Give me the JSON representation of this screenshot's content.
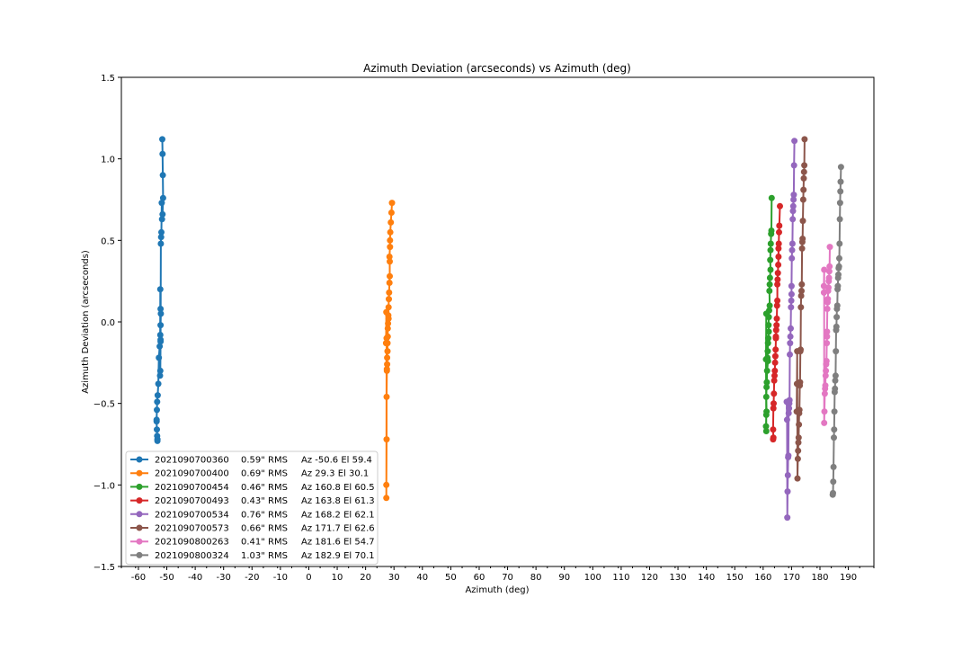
{
  "chart_data": {
    "type": "line",
    "title": "Azimuth Deviation (arcseconds) vs Azimuth (deg)",
    "xlabel": "Azimuth (deg)",
    "ylabel": "Azimuth Deviation (arcseconds)",
    "xlim": [
      -66,
      199
    ],
    "ylim": [
      -1.5,
      1.5
    ],
    "xticks": [
      -60,
      -50,
      -40,
      -30,
      -20,
      -10,
      0,
      10,
      20,
      30,
      40,
      50,
      60,
      70,
      80,
      90,
      100,
      110,
      120,
      130,
      140,
      150,
      160,
      170,
      180,
      190
    ],
    "yticks": [
      1.5,
      1.0,
      0.5,
      0.0,
      -0.5,
      -1.0,
      -1.5
    ],
    "ytick_labels": [
      "1.5",
      "1.0",
      "0.5",
      "0.0",
      "−0.5",
      "−1.0",
      "−1.5"
    ],
    "legend_position": "lower-left",
    "grid": false,
    "series": [
      {
        "name": "2021090700360",
        "rms": "0.59\" RMS",
        "pos": "Az -50.6 El 59.4",
        "color": "#1f77b4",
        "x": [
          -51.6,
          -51.5,
          -51.4,
          -51.3,
          -51.5,
          -51.7,
          -51.8,
          -51.9,
          -52.0,
          -52.1,
          -52.2,
          -52.2,
          -52.3,
          -52.4,
          -52.3,
          -52.2,
          -52.1,
          -52.2,
          -52.3,
          -52.5,
          -52.8,
          -53.0,
          -53.2,
          -53.4,
          -53.5,
          -53.6,
          -53.6,
          -53.5,
          -53.4,
          -53.3,
          -53.3
        ],
        "y": [
          1.12,
          1.03,
          0.9,
          0.76,
          0.66,
          0.63,
          0.73,
          0.55,
          0.52,
          0.48,
          -0.11,
          -0.12,
          -0.3,
          -0.33,
          0.2,
          0.08,
          0.05,
          -0.02,
          -0.08,
          -0.15,
          -0.22,
          -0.38,
          -0.45,
          -0.49,
          -0.54,
          -0.6,
          -0.61,
          -0.66,
          -0.7,
          -0.72,
          -0.73
        ]
      },
      {
        "name": "2021090700400",
        "rms": "0.69\" RMS",
        "pos": "Az 29.3 El 30.1",
        "color": "#ff7f0e",
        "x": [
          29.3,
          29.1,
          28.9,
          28.7,
          28.6,
          28.6,
          28.4,
          28.5,
          28.5,
          28.4,
          28.3,
          28.2,
          28.1,
          28.0,
          28.1,
          27.9,
          27.8,
          27.8,
          27.7,
          27.7,
          27.6,
          27.6,
          27.5,
          27.5,
          27.4,
          27.4,
          27.3,
          27.3,
          27.4,
          27.2,
          27.3
        ],
        "y": [
          0.73,
          0.67,
          0.61,
          0.55,
          0.5,
          0.46,
          0.4,
          0.37,
          0.28,
          0.24,
          0.18,
          0.14,
          0.09,
          0.04,
          0.02,
          -0.01,
          -0.04,
          -0.09,
          -0.13,
          -0.18,
          -0.22,
          -0.26,
          -0.29,
          -0.3,
          -0.46,
          -0.72,
          -1.0,
          -1.08,
          -0.1,
          -0.13,
          0.06
        ]
      },
      {
        "name": "2021090700454",
        "rms": "0.46\" RMS",
        "pos": "Az 160.8 El 60.5",
        "color": "#2ca02c",
        "x": [
          163.0,
          162.9,
          162.8,
          162.7,
          162.6,
          162.5,
          162.6,
          162.4,
          162.3,
          162.2,
          162.3,
          162.1,
          162.0,
          161.9,
          162.0,
          161.8,
          161.7,
          161.6,
          161.5,
          161.7,
          161.4,
          161.3,
          161.2,
          161.1,
          161.2,
          161.1,
          161.0,
          161.1,
          161.0,
          161.1
        ],
        "y": [
          0.76,
          0.56,
          0.54,
          0.48,
          0.44,
          0.38,
          0.32,
          0.27,
          0.23,
          0.19,
          0.1,
          0.07,
          0.03,
          -0.02,
          -0.06,
          -0.1,
          -0.13,
          -0.18,
          -0.22,
          -0.24,
          -0.3,
          -0.37,
          -0.4,
          -0.46,
          -0.55,
          -0.57,
          -0.64,
          -0.67,
          -0.23,
          0.05
        ]
      },
      {
        "name": "2021090700493",
        "rms": "0.43\" RMS",
        "pos": "Az 163.8 El 61.3",
        "color": "#d62728",
        "x": [
          165.9,
          165.7,
          165.6,
          165.5,
          165.4,
          165.4,
          165.3,
          165.2,
          165.1,
          165.0,
          165.0,
          164.9,
          164.8,
          164.7,
          164.6,
          164.5,
          164.5,
          164.4,
          164.3,
          164.2,
          164.1,
          164.0,
          163.9,
          163.8,
          163.7,
          163.6,
          163.5,
          163.6,
          163.5
        ],
        "y": [
          0.71,
          0.59,
          0.55,
          0.48,
          0.45,
          0.4,
          0.35,
          0.3,
          0.26,
          0.23,
          0.13,
          0.1,
          0.02,
          -0.02,
          -0.05,
          -0.09,
          -0.1,
          -0.17,
          -0.21,
          -0.25,
          -0.3,
          -0.33,
          -0.36,
          -0.44,
          -0.5,
          -0.53,
          -0.66,
          -0.71,
          -0.72
        ]
      },
      {
        "name": "2021090700534",
        "rms": "0.76\" RMS",
        "pos": "Az 168.2 El 62.1",
        "color": "#9467bd",
        "x": [
          171.0,
          170.9,
          170.8,
          170.7,
          170.6,
          170.5,
          170.4,
          170.3,
          170.2,
          170.1,
          170.0,
          170.0,
          169.9,
          169.8,
          169.7,
          169.6,
          169.5,
          169.4,
          169.3,
          169.2,
          169.1,
          169.0,
          168.9,
          168.8,
          168.7,
          168.6,
          168.5,
          168.4,
          168.3
        ],
        "y": [
          1.11,
          0.96,
          0.78,
          0.75,
          0.71,
          0.68,
          0.63,
          0.48,
          0.44,
          0.39,
          0.22,
          0.17,
          0.13,
          0.09,
          -0.04,
          -0.09,
          -0.13,
          -0.2,
          -0.48,
          -0.5,
          -0.53,
          -0.56,
          -0.82,
          -0.83,
          -0.94,
          -1.04,
          -1.2,
          -0.6,
          -0.49
        ]
      },
      {
        "name": "2021090700573",
        "rms": "0.66\" RMS",
        "pos": "Az 171.7 El 62.6",
        "color": "#8c564b",
        "x": [
          174.6,
          174.5,
          174.4,
          174.3,
          174.2,
          174.1,
          174.0,
          173.9,
          173.8,
          173.7,
          173.6,
          173.5,
          173.4,
          173.3,
          173.2,
          173.1,
          173.0,
          172.9,
          172.8,
          172.7,
          172.6,
          172.5,
          172.4,
          172.3,
          172.2,
          172.1,
          172.0,
          171.9,
          171.8
        ],
        "y": [
          1.12,
          0.96,
          0.92,
          0.88,
          0.81,
          0.75,
          0.62,
          0.51,
          0.49,
          0.45,
          0.23,
          0.19,
          0.16,
          0.09,
          -0.17,
          -0.18,
          -0.37,
          -0.39,
          -0.54,
          -0.56,
          -0.63,
          -0.71,
          -0.74,
          -0.79,
          -0.84,
          -0.96,
          -0.18,
          -0.38,
          -0.55
        ]
      },
      {
        "name": "2021090800263",
        "rms": "0.41\" RMS",
        "pos": "Az 181.6 El 54.7",
        "color": "#e377c2",
        "x": [
          183.5,
          183.4,
          183.3,
          183.2,
          183.1,
          183.0,
          182.9,
          182.8,
          182.7,
          182.6,
          182.5,
          182.5,
          182.4,
          182.3,
          182.2,
          182.1,
          182.0,
          181.9,
          181.8,
          181.7,
          181.6,
          181.5,
          181.5,
          181.4,
          181.4
        ],
        "y": [
          0.46,
          0.34,
          0.31,
          0.27,
          0.25,
          0.21,
          0.19,
          0.14,
          0.12,
          0.08,
          -0.06,
          -0.09,
          -0.13,
          -0.24,
          -0.26,
          -0.3,
          -0.33,
          -0.39,
          -0.41,
          -0.44,
          -0.55,
          -0.62,
          0.32,
          0.22,
          0.18
        ]
      },
      {
        "name": "2021090800324",
        "rms": "1.03\" RMS",
        "pos": "Az 182.9 El 70.1",
        "color": "#7f7f7f",
        "x": [
          187.4,
          187.3,
          187.2,
          187.1,
          187.0,
          186.9,
          186.8,
          186.7,
          186.6,
          186.5,
          186.4,
          186.3,
          186.2,
          186.1,
          186.0,
          185.9,
          185.8,
          185.7,
          185.6,
          185.5,
          185.4,
          185.3,
          185.2,
          185.1,
          185.0,
          184.9,
          184.8,
          184.7,
          184.6,
          184.5
        ],
        "y": [
          0.95,
          0.86,
          0.8,
          0.73,
          0.63,
          0.48,
          0.39,
          0.34,
          0.33,
          0.29,
          0.27,
          0.22,
          0.2,
          0.1,
          0.08,
          0.03,
          -0.03,
          -0.05,
          -0.18,
          -0.33,
          -0.36,
          -0.41,
          -0.43,
          -0.55,
          -0.66,
          -0.71,
          -0.89,
          -0.98,
          -1.05,
          -1.06
        ]
      }
    ]
  }
}
